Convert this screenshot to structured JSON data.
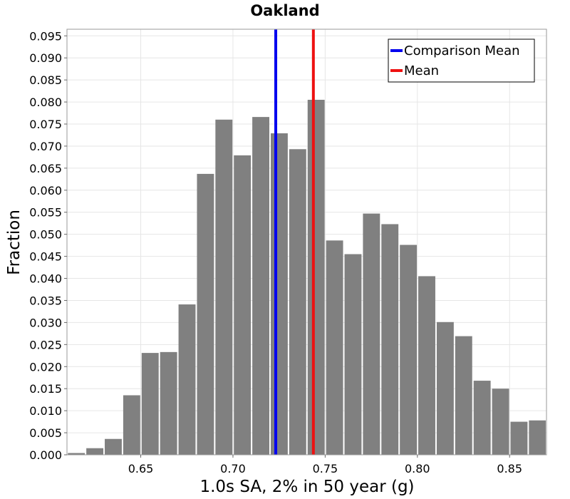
{
  "chart_data": {
    "type": "bar",
    "title": "Oakland",
    "xlabel": "1.0s SA, 2% in 50 year (g)",
    "ylabel": "Fraction",
    "xlim": [
      0.61,
      0.87
    ],
    "ylim": [
      0.0,
      0.0965
    ],
    "bin_width": 0.01,
    "x_ticks": [
      0.65,
      0.7,
      0.75,
      0.8,
      0.85
    ],
    "x_tick_labels": [
      "0.65",
      "0.70",
      "0.75",
      "0.80",
      "0.85"
    ],
    "y_ticks": [
      0.0,
      0.005,
      0.01,
      0.015,
      0.02,
      0.025,
      0.03,
      0.035,
      0.04,
      0.045,
      0.05,
      0.055,
      0.06,
      0.065,
      0.07,
      0.075,
      0.08,
      0.085,
      0.09,
      0.095
    ],
    "y_tick_labels": [
      "0.000",
      "0.005",
      "0.010",
      "0.015",
      "0.020",
      "0.025",
      "0.030",
      "0.035",
      "0.040",
      "0.045",
      "0.050",
      "0.055",
      "0.060",
      "0.065",
      "0.070",
      "0.075",
      "0.080",
      "0.085",
      "0.090",
      "0.095"
    ],
    "grid": true,
    "bar_color": "#808080",
    "bins": [
      {
        "center": 0.6151,
        "value": 0.0004
      },
      {
        "center": 0.6251,
        "value": 0.0015
      },
      {
        "center": 0.6351,
        "value": 0.0036
      },
      {
        "center": 0.6451,
        "value": 0.0135
      },
      {
        "center": 0.6551,
        "value": 0.0231
      },
      {
        "center": 0.6651,
        "value": 0.0233
      },
      {
        "center": 0.6751,
        "value": 0.0341
      },
      {
        "center": 0.6851,
        "value": 0.0637
      },
      {
        "center": 0.6951,
        "value": 0.076
      },
      {
        "center": 0.7051,
        "value": 0.0679
      },
      {
        "center": 0.7151,
        "value": 0.0766
      },
      {
        "center": 0.7251,
        "value": 0.0729
      },
      {
        "center": 0.7351,
        "value": 0.0693
      },
      {
        "center": 0.7451,
        "value": 0.0805
      },
      {
        "center": 0.7551,
        "value": 0.0486
      },
      {
        "center": 0.7651,
        "value": 0.0455
      },
      {
        "center": 0.7751,
        "value": 0.0547
      },
      {
        "center": 0.7851,
        "value": 0.0523
      },
      {
        "center": 0.7951,
        "value": 0.0476
      },
      {
        "center": 0.8051,
        "value": 0.0405
      },
      {
        "center": 0.8151,
        "value": 0.0301
      },
      {
        "center": 0.8251,
        "value": 0.0269
      },
      {
        "center": 0.8351,
        "value": 0.0168
      },
      {
        "center": 0.8451,
        "value": 0.015
      },
      {
        "center": 0.8551,
        "value": 0.0075
      },
      {
        "center": 0.8651,
        "value": 0.0078
      }
    ],
    "lines": [
      {
        "name": "Comparison Mean",
        "x": 0.7232,
        "color": "#0000ee"
      },
      {
        "name": "Mean",
        "x": 0.7436,
        "color": "#ee1111"
      }
    ],
    "legend": {
      "position": "top-right",
      "entries": [
        "Comparison Mean",
        "Mean"
      ]
    }
  }
}
